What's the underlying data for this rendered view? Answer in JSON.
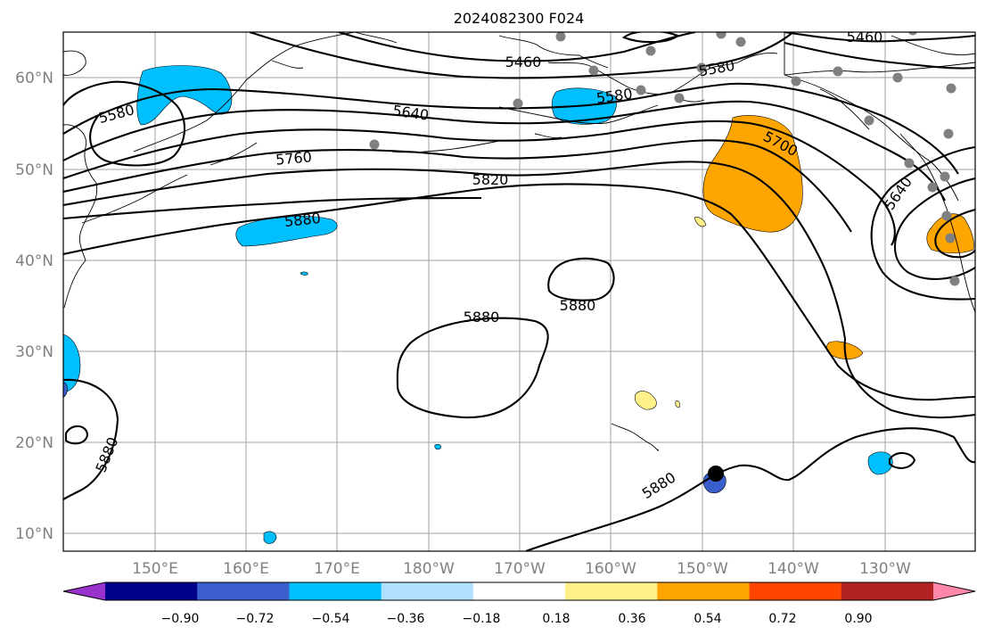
{
  "title": "2024082300 F024",
  "colors": {
    "contour": "#000000",
    "grid": "#a0a0a0",
    "coast": "#000000",
    "station": "#808080",
    "marker": "#000000"
  },
  "axes": {
    "lat_labels": [
      "60°N",
      "50°N",
      "40°N",
      "30°N",
      "20°N",
      "10°N"
    ],
    "lon_labels": [
      "150°E",
      "160°E",
      "170°E",
      "180°W",
      "170°W",
      "160°W",
      "150°W",
      "140°W",
      "130°W"
    ]
  },
  "contour_labels": [
    "5460",
    "5460",
    "5580",
    "5580",
    "5580",
    "5640",
    "5640",
    "5700",
    "5760",
    "5820",
    "5880",
    "5880",
    "5880",
    "5880",
    "5880"
  ],
  "colorbar": {
    "colors": [
      "#9932cc",
      "#00008b",
      "#3a5fcd",
      "#00bfff",
      "#b0e2ff",
      "#ffffff",
      "#fff08a",
      "#ffa500",
      "#ff4500",
      "#b22222",
      "#ff88aa"
    ],
    "labels": [
      "−0.90",
      "−0.72",
      "−0.54",
      "−0.36",
      "−0.18",
      "0.18",
      "0.36",
      "0.54",
      "0.72",
      "0.90"
    ]
  },
  "shading": {
    "negative": "#00bfff",
    "negative_deep": "#3a5fcd",
    "positive": "#ffa500",
    "positive_light": "#fff08a"
  }
}
